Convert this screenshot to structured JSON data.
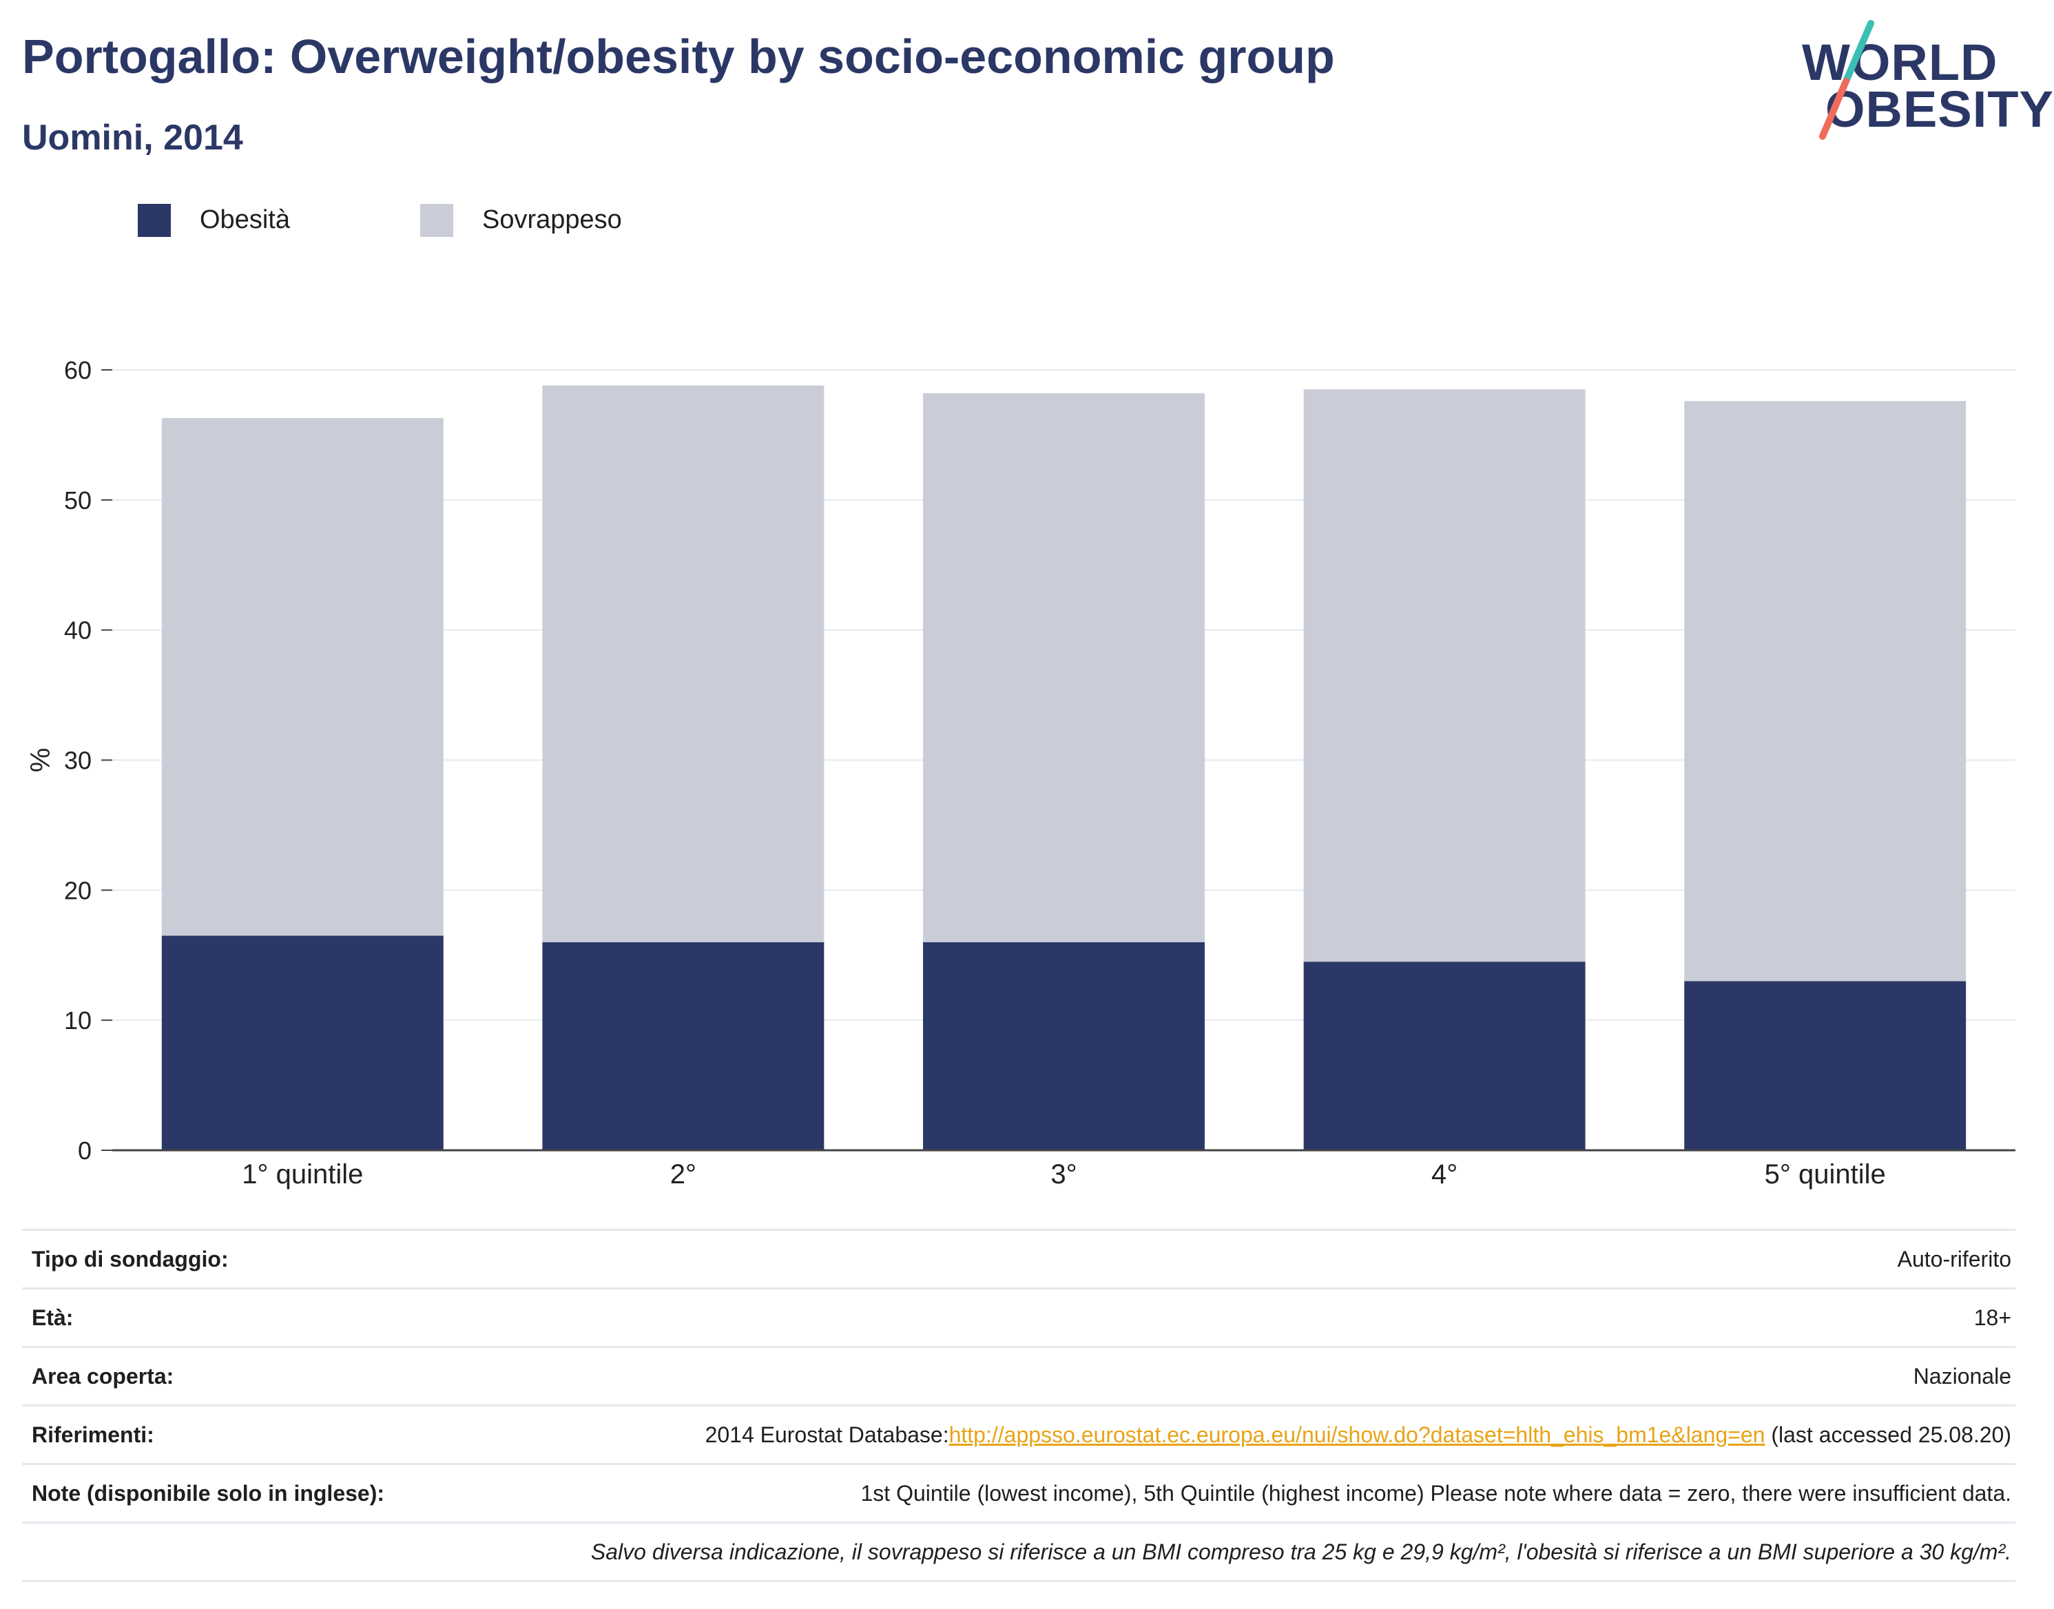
{
  "header": {
    "title": "Portogallo: Overweight/obesity by socio-economic group",
    "subtitle": "Uomini, 2014"
  },
  "logo": {
    "line1": "WORLD",
    "line2": "OBESITY",
    "colors": {
      "text": "#2b3866",
      "slash_top": "#3bbfb5",
      "slash_bottom": "#f06b5b"
    }
  },
  "legend": {
    "items": [
      {
        "label": "Obesità",
        "color": "#2b3766"
      },
      {
        "label": "Sovrappeso",
        "color": "#cacdd8"
      }
    ]
  },
  "chart_data": {
    "type": "bar",
    "stacked": true,
    "categories": [
      "1° quintile",
      "2°",
      "3°",
      "4°",
      "5° quintile"
    ],
    "series": [
      {
        "name": "Obesità",
        "color": "#2b3766",
        "values": [
          16.5,
          16.0,
          16.0,
          14.5,
          13.0
        ]
      },
      {
        "name": "Sovrappeso",
        "color": "#cacdd8",
        "values": [
          39.8,
          42.8,
          42.2,
          44.0,
          44.6
        ]
      }
    ],
    "totals": [
      56.3,
      58.8,
      58.2,
      58.5,
      57.6
    ],
    "ylabel": "%",
    "ylim": [
      0,
      60
    ],
    "yticks": [
      0,
      10,
      20,
      30,
      40,
      50,
      60
    ],
    "grid": true,
    "legend_position": "top-left"
  },
  "info": {
    "rows": [
      {
        "label": "Tipo di sondaggio:",
        "value": "Auto-riferito"
      },
      {
        "label": "Età:",
        "value": "18+"
      },
      {
        "label": "Area coperta:",
        "value": "Nazionale"
      },
      {
        "label": "Riferimenti:",
        "value_prefix": "2014 Eurostat Database:",
        "link": "http://appsso.eurostat.ec.europa.eu/nui/show.do?dataset=hlth_ehis_bm1e&lang=en",
        "value_suffix": " (last accessed 25.08.20)"
      },
      {
        "label": "Note (disponibile solo in inglese):",
        "value": "1st Quintile (lowest income), 5th Quintile (highest income) Please note where data = zero, there were insufficient data."
      }
    ],
    "footnote": "Salvo diversa indicazione, il sovrappeso si riferisce a un BMI compreso tra 25 kg e 29,9 kg/m², l'obesità si riferisce a un BMI superiore a 30 kg/m²."
  }
}
